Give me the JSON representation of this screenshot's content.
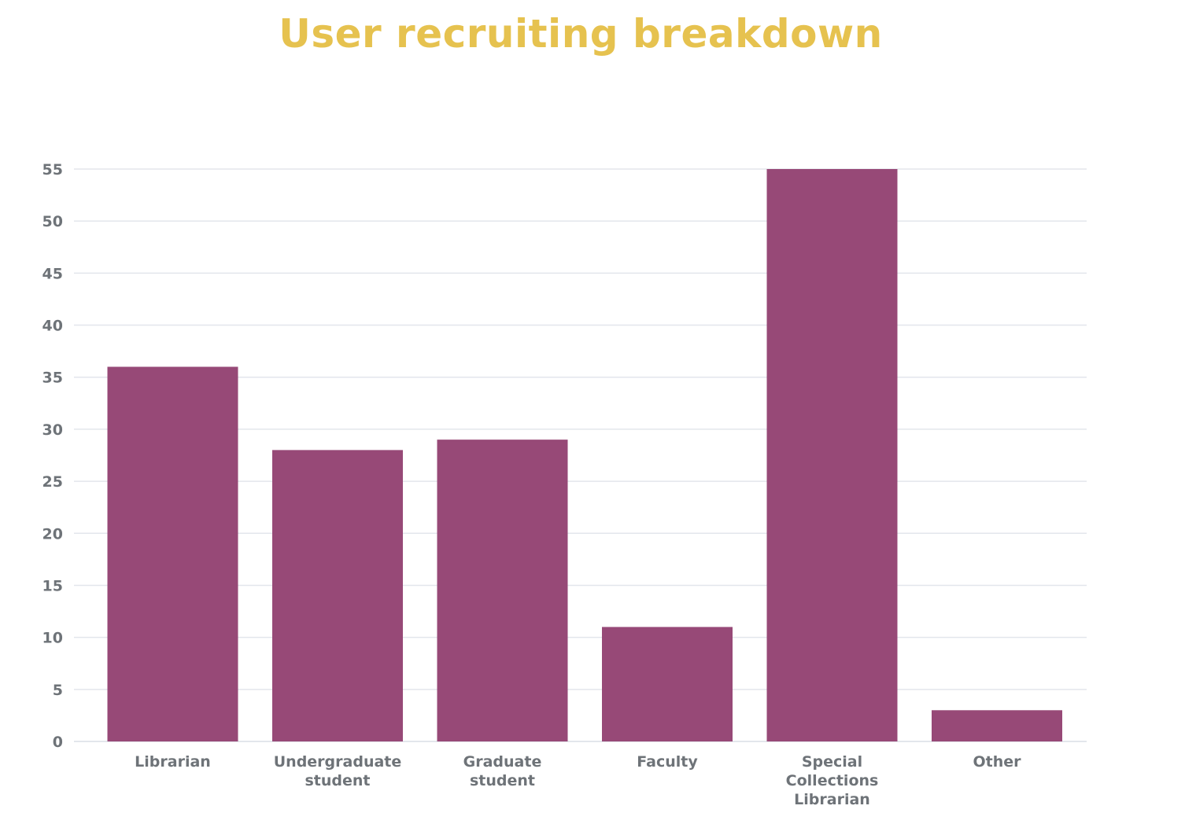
{
  "chart_data": {
    "type": "bar",
    "title": "User recruiting breakdown",
    "categories": [
      [
        "Librarian"
      ],
      [
        "Undergraduate",
        "student"
      ],
      [
        "Graduate",
        "student"
      ],
      [
        "Faculty"
      ],
      [
        "Special",
        "Collections",
        "Librarian"
      ],
      [
        "Other"
      ]
    ],
    "values": [
      36,
      28,
      29,
      11,
      55,
      3
    ],
    "y_ticks": [
      0,
      5,
      10,
      15,
      20,
      25,
      30,
      35,
      40,
      45,
      50,
      55
    ],
    "ylim": [
      0,
      55
    ],
    "xlabel": "",
    "ylabel": "",
    "grid": true,
    "legend": "none"
  },
  "colors": {
    "bar": "#974977",
    "title": "#e6c24f",
    "grid": "#e3e6ec",
    "axis_text": "#6e7378"
  }
}
